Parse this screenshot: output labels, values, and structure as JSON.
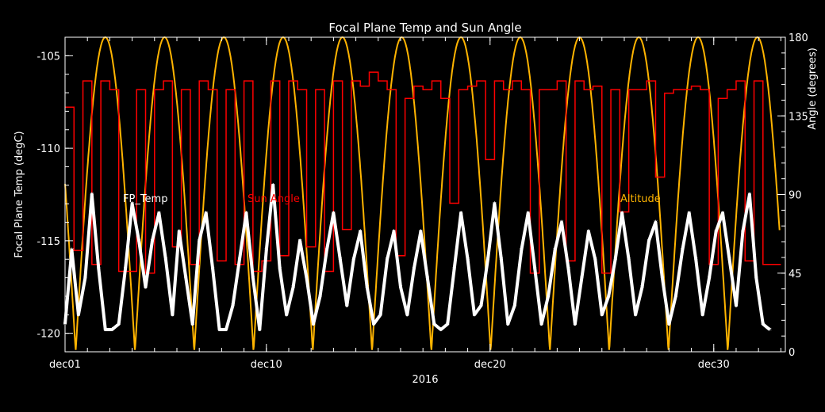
{
  "chart_data": {
    "type": "line",
    "title": "Focal Plane Temp and Sun Angle",
    "xlabel": "2016",
    "ylabel_left": "Focal Plane Temp (degC)",
    "ylabel_right": "Angle (degrees)",
    "x_unit": "day of December 2016",
    "xlim": [
      1,
      33.2
    ],
    "ylim_left": [
      -121,
      -104
    ],
    "ylim_right": [
      0,
      180
    ],
    "x_ticks": [
      {
        "x": 1,
        "label": "dec01"
      },
      {
        "x": 10,
        "label": "dec10"
      },
      {
        "x": 20,
        "label": "dec20"
      },
      {
        "x": 30,
        "label": "dec30"
      }
    ],
    "y_ticks_left": [
      -105,
      -110,
      -115,
      -120
    ],
    "y_ticks_right": [
      0,
      45,
      90,
      135,
      180
    ],
    "series": [
      {
        "name": "FP_Temp",
        "axis": "left",
        "color": "#ffffff",
        "marker": "asterisk",
        "x": [
          1.0,
          1.3,
          1.6,
          1.9,
          2.2,
          2.5,
          2.8,
          3.1,
          3.4,
          3.7,
          4.0,
          4.3,
          4.6,
          4.9,
          5.2,
          5.5,
          5.8,
          6.1,
          6.4,
          6.7,
          7.0,
          7.3,
          7.6,
          7.9,
          8.2,
          8.5,
          8.8,
          9.1,
          9.4,
          9.7,
          10.0,
          10.3,
          10.6,
          10.9,
          11.2,
          11.5,
          11.8,
          12.1,
          12.4,
          12.7,
          13.0,
          13.3,
          13.6,
          13.9,
          14.2,
          14.5,
          14.8,
          15.1,
          15.4,
          15.7,
          16.0,
          16.3,
          16.6,
          16.9,
          17.2,
          17.5,
          17.8,
          18.1,
          18.4,
          18.7,
          19.0,
          19.3,
          19.6,
          19.9,
          20.2,
          20.5,
          20.8,
          21.1,
          21.4,
          21.7,
          22.0,
          22.3,
          22.6,
          22.9,
          23.2,
          23.5,
          23.8,
          24.1,
          24.4,
          24.7,
          25.0,
          25.3,
          25.6,
          25.9,
          26.2,
          26.5,
          26.8,
          27.1,
          27.4,
          27.7,
          28.0,
          28.3,
          28.6,
          28.9,
          29.2,
          29.5,
          29.8,
          30.1,
          30.4,
          30.7,
          31.0,
          31.3,
          31.6,
          31.9,
          32.2,
          32.5
        ],
        "y": [
          -119.5,
          -115.5,
          -119.0,
          -117.0,
          -112.5,
          -116.5,
          -119.8,
          -119.8,
          -119.5,
          -116.5,
          -113.0,
          -115.0,
          -117.5,
          -115.0,
          -113.5,
          -116.0,
          -119.0,
          -114.5,
          -117.0,
          -119.5,
          -115.0,
          -113.5,
          -116.5,
          -119.8,
          -119.8,
          -118.5,
          -116.0,
          -113.5,
          -117.0,
          -119.8,
          -115.5,
          -112.0,
          -116.5,
          -119.0,
          -117.5,
          -115.0,
          -117.0,
          -119.5,
          -118.0,
          -115.5,
          -113.5,
          -116.0,
          -118.5,
          -116.0,
          -114.5,
          -117.5,
          -119.5,
          -119.0,
          -116.0,
          -114.5,
          -117.5,
          -119.0,
          -116.5,
          -114.5,
          -117.0,
          -119.5,
          -119.8,
          -119.5,
          -116.5,
          -113.5,
          -116.0,
          -119.0,
          -118.5,
          -116.0,
          -113.0,
          -116.0,
          -119.5,
          -118.5,
          -115.5,
          -113.5,
          -116.5,
          -119.5,
          -118.0,
          -115.5,
          -114.0,
          -116.5,
          -119.5,
          -117.0,
          -114.5,
          -116.0,
          -119.0,
          -118.0,
          -116.0,
          -113.5,
          -116.0,
          -119.0,
          -117.5,
          -115.0,
          -114.0,
          -117.0,
          -119.5,
          -118.0,
          -115.5,
          -113.5,
          -116.0,
          -119.0,
          -117.0,
          -114.5,
          -113.5,
          -116.0,
          -118.5,
          -114.5,
          -112.5,
          -117.0,
          -119.5,
          -119.8
        ]
      },
      {
        "name": "Sun Angle",
        "axis": "right",
        "color": "#ff0000",
        "x": [
          1.0,
          1.4,
          1.8,
          2.2,
          2.6,
          3.0,
          3.4,
          3.8,
          4.2,
          4.6,
          5.0,
          5.4,
          5.8,
          6.2,
          6.6,
          7.0,
          7.4,
          7.8,
          8.2,
          8.6,
          9.0,
          9.4,
          9.8,
          10.2,
          10.6,
          11.0,
          11.4,
          11.8,
          12.2,
          12.6,
          13.0,
          13.4,
          13.8,
          14.2,
          14.6,
          15.0,
          15.4,
          15.8,
          16.2,
          16.6,
          17.0,
          17.4,
          17.8,
          18.2,
          18.6,
          19.0,
          19.4,
          19.8,
          20.2,
          20.6,
          21.0,
          21.4,
          21.8,
          22.2,
          22.6,
          23.0,
          23.4,
          23.8,
          24.2,
          24.6,
          25.0,
          25.4,
          25.8,
          26.2,
          26.6,
          27.0,
          27.4,
          27.8,
          28.2,
          28.6,
          29.0,
          29.4,
          29.8,
          30.2,
          30.6,
          31.0,
          31.4,
          31.8,
          32.2,
          32.6,
          33.0
        ],
        "y": [
          140,
          58,
          155,
          50,
          155,
          150,
          46,
          46,
          150,
          45,
          150,
          155,
          60,
          150,
          50,
          155,
          150,
          52,
          150,
          50,
          155,
          46,
          52,
          155,
          55,
          155,
          150,
          60,
          150,
          46,
          155,
          70,
          155,
          152,
          160,
          155,
          150,
          55,
          145,
          152,
          150,
          155,
          145,
          85,
          150,
          152,
          155,
          110,
          155,
          150,
          155,
          150,
          45,
          150,
          150,
          155,
          52,
          155,
          150,
          152,
          45,
          150,
          80,
          150,
          150,
          155,
          100,
          148,
          150,
          150,
          152,
          150,
          50,
          145,
          150,
          155,
          52,
          155,
          50,
          50,
          50
        ]
      },
      {
        "name": "Altitude",
        "axis": "right",
        "color": "#ffb400",
        "period_days": 2.65,
        "min_deg": 0,
        "max_deg": 180,
        "first_peak_day": 2.8
      }
    ],
    "legend_labels": [
      {
        "text": "FP_Temp",
        "color": "#ffffff"
      },
      {
        "text": "Sun Angle",
        "color": "#ff0000"
      },
      {
        "text": "Altitude",
        "color": "#ffb400"
      }
    ]
  }
}
